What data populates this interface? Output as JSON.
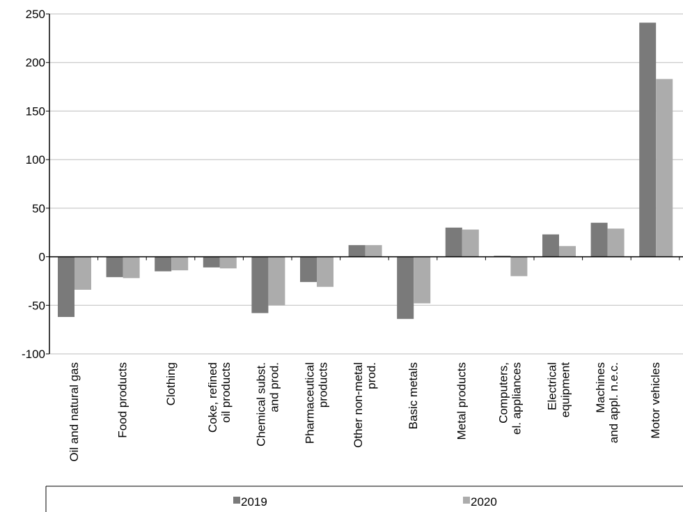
{
  "chart_data": {
    "type": "bar",
    "categories": [
      [
        "Oil and natural gas"
      ],
      [
        "Food products"
      ],
      [
        "Clothing"
      ],
      [
        "Coke, refined",
        "oil products"
      ],
      [
        "Chemical subst.",
        "and prod."
      ],
      [
        "Pharmaceutical",
        "products"
      ],
      [
        "Other non-metal",
        "prod."
      ],
      [
        "Basic metals"
      ],
      [
        "Metal products"
      ],
      [
        "Computers,",
        "el. appliances"
      ],
      [
        "Electrical",
        "equipment"
      ],
      [
        "Machines",
        "and appl. n.e.c."
      ],
      [
        "Motor vehicles"
      ]
    ],
    "series": [
      {
        "name": "2019",
        "color": "#7a7a7a",
        "values": [
          -62,
          -21,
          -15,
          -11,
          -58,
          -26,
          12,
          -64,
          30,
          1,
          23,
          35,
          241
        ]
      },
      {
        "name": "2020",
        "color": "#acacac",
        "values": [
          -34,
          -22,
          -14,
          -12,
          -50,
          -31,
          12,
          -48,
          28,
          -20,
          11,
          29,
          183
        ]
      }
    ],
    "ylim": [
      -100,
      250
    ],
    "yticks": [
      -100,
      -50,
      0,
      50,
      100,
      150,
      200,
      250
    ],
    "grid": true,
    "legend_position": "bottom"
  }
}
